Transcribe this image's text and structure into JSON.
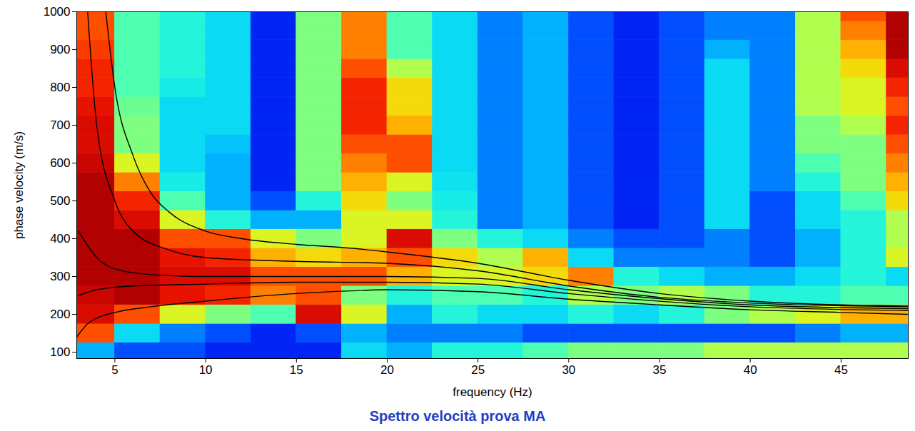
{
  "chart_data": {
    "type": "heatmap",
    "title": "Spettro velocità prova MA",
    "xlabel": "frequency (Hz)",
    "ylabel": "phase velocity (m/s)",
    "xlim": [
      2.9,
      48.7
    ],
    "ylim": [
      83,
      1000
    ],
    "xticks": [
      5,
      10,
      15,
      20,
      25,
      30,
      35,
      40,
      45
    ],
    "yticks": [
      100,
      200,
      300,
      400,
      500,
      600,
      700,
      800,
      900,
      1000
    ],
    "zlim": [
      0,
      1
    ],
    "heatmap": {
      "x_bins": [
        2.5,
        5,
        7.5,
        10,
        12.5,
        15,
        17.5,
        20,
        22.5,
        25,
        27.5,
        30,
        32.5,
        35,
        37.5,
        40,
        42.5,
        45,
        47.5,
        50
      ],
      "y_bins": [
        75,
        125,
        175,
        225,
        275,
        325,
        375,
        425,
        475,
        525,
        575,
        625,
        675,
        725,
        775,
        825,
        875,
        925,
        975,
        1025
      ],
      "z": [
        [
          0.3,
          0.8,
          0.9,
          0.92,
          0.95,
          0.95,
          0.95,
          0.95,
          0.95,
          0.95,
          0.92,
          0.9,
          0.9,
          0.88,
          0.85,
          0.85,
          0.82,
          0.8,
          0.8
        ],
        [
          0.2,
          0.35,
          0.8,
          0.95,
          0.95,
          0.95,
          0.95,
          0.9,
          0.85,
          0.75,
          0.6,
          0.5,
          0.5,
          0.48,
          0.45,
          0.45,
          0.45,
          0.45,
          0.45
        ],
        [
          0.2,
          0.25,
          0.6,
          0.88,
          0.9,
          0.88,
          0.8,
          0.6,
          0.45,
          0.38,
          0.35,
          0.35,
          0.35,
          0.35,
          0.38,
          0.4,
          0.4,
          0.4,
          0.4
        ],
        [
          0.15,
          0.2,
          0.5,
          0.85,
          0.9,
          0.85,
          0.8,
          0.4,
          0.3,
          0.3,
          0.3,
          0.32,
          0.35,
          0.35,
          0.35,
          0.35,
          0.35,
          0.35,
          0.35
        ],
        [
          0.15,
          0.15,
          0.45,
          0.75,
          0.8,
          0.7,
          0.6,
          0.3,
          0.2,
          0.15,
          0.15,
          0.15,
          0.15,
          0.15,
          0.15,
          0.15,
          0.15,
          0.15,
          0.15
        ],
        [
          0.15,
          0.2,
          0.9,
          0.8,
          0.8,
          0.65,
          0.5,
          0.3,
          0.4,
          0.5,
          0.5,
          0.5,
          0.5,
          0.5,
          0.5,
          0.5,
          0.5,
          0.5,
          0.5
        ],
        [
          0.35,
          0.3,
          0.6,
          0.5,
          0.8,
          0.7,
          0.6,
          0.6,
          0.65,
          0.7,
          0.75,
          0.8,
          0.85,
          0.85,
          0.85,
          0.8,
          0.75,
          0.75,
          0.75
        ],
        [
          0.3,
          0.25,
          0.3,
          0.4,
          0.7,
          0.8,
          0.9,
          0.6,
          0.5,
          0.6,
          0.8,
          0.8,
          0.7,
          0.65,
          0.65,
          0.55,
          0.45,
          0.45,
          0.45
        ],
        [
          0.4,
          0.25,
          0.4,
          0.45,
          0.6,
          0.65,
          0.5,
          0.4,
          0.38,
          0.36,
          0.35,
          0.35,
          0.35,
          0.35,
          0.35,
          0.35,
          0.35,
          0.35,
          0.35
        ],
        [
          0.4,
          0.25,
          0.35,
          0.45,
          0.6,
          0.55,
          0.4,
          0.25,
          0.25,
          0.25,
          0.25,
          0.25,
          0.25,
          0.25,
          0.25,
          0.25,
          0.25,
          0.25,
          0.25
        ],
        [
          0.45,
          0.2,
          0.35,
          0.4,
          0.65,
          0.7,
          0.35,
          0.3,
          0.3,
          0.3,
          0.3,
          0.3,
          0.3,
          0.3,
          0.3,
          0.3,
          0.3,
          0.3,
          0.3
        ],
        [
          0.5,
          0.2,
          0.4,
          0.55,
          0.75,
          0.35,
          0.25,
          0.2,
          0.2,
          0.2,
          0.2,
          0.2,
          0.2,
          0.2,
          0.2,
          0.2,
          0.2,
          0.2,
          0.2
        ],
        [
          0.5,
          0.2,
          0.35,
          0.5,
          0.4,
          0.25,
          0.2,
          0.15,
          0.15,
          0.15,
          0.15,
          0.15,
          0.15,
          0.15,
          0.15,
          0.15,
          0.15,
          0.15,
          0.15
        ],
        [
          0.5,
          0.2,
          0.4,
          0.55,
          0.35,
          0.25,
          0.2,
          0.2,
          0.2,
          0.2,
          0.2,
          0.2,
          0.2,
          0.2,
          0.2,
          0.2,
          0.2,
          0.2,
          0.2
        ],
        [
          0.55,
          0.2,
          0.5,
          0.5,
          0.3,
          0.25,
          0.25,
          0.35,
          0.35,
          0.35,
          0.35,
          0.35,
          0.35,
          0.35,
          0.35,
          0.35,
          0.3,
          0.25,
          0.25
        ],
        [
          0.55,
          0.2,
          0.55,
          0.4,
          0.3,
          0.2,
          0.2,
          0.2,
          0.2,
          0.25,
          0.25,
          0.25,
          0.25,
          0.25,
          0.25,
          0.25,
          0.25,
          0.25,
          0.25
        ],
        [
          0.55,
          0.25,
          0.6,
          0.4,
          0.35,
          0.3,
          0.3,
          0.35,
          0.35,
          0.4,
          0.45,
          0.5,
          0.5,
          0.55,
          0.55,
          0.55,
          0.55,
          0.55,
          0.55
        ],
        [
          0.55,
          0.3,
          0.7,
          0.45,
          0.4,
          0.4,
          0.4,
          0.4,
          0.45,
          0.5,
          0.5,
          0.5,
          0.55,
          0.6,
          0.6,
          0.65,
          0.7,
          0.75,
          0.8
        ],
        [
          0.55,
          0.3,
          0.7,
          0.45,
          0.35,
          0.6,
          0.55,
          0.55,
          0.65,
          0.7,
          0.75,
          0.8,
          0.85,
          0.8,
          0.85,
          0.9,
          0.95,
          0.95,
          0.95
        ]
      ]
    },
    "series": [
      {
        "color": "#000000",
        "type": "line",
        "x": [
          4.5,
          5,
          6,
          7,
          8,
          10,
          12,
          15,
          18,
          20,
          25,
          30,
          35,
          40,
          45,
          48.7
        ],
        "values": [
          1000,
          800,
          620,
          520,
          470,
          420,
          400,
          385,
          375,
          365,
          335,
          290,
          255,
          235,
          225,
          222
        ]
      },
      {
        "color": "#000000",
        "type": "line",
        "x": [
          3.5,
          4,
          5,
          6,
          8,
          10,
          15,
          20,
          25,
          30,
          35,
          40,
          48.7
        ],
        "values": [
          1000,
          700,
          500,
          420,
          370,
          350,
          340,
          335,
          315,
          275,
          245,
          230,
          220
        ]
      },
      {
        "color": "#000000",
        "type": "line",
        "x": [
          3,
          4,
          5,
          7,
          10,
          15,
          20,
          25,
          30,
          40,
          48.7
        ],
        "values": [
          420,
          350,
          320,
          305,
          300,
          300,
          300,
          295,
          265,
          225,
          215
        ]
      },
      {
        "color": "#000000",
        "type": "line",
        "x": [
          3,
          4,
          6,
          10,
          15,
          20,
          25,
          30,
          40,
          48.7
        ],
        "values": [
          250,
          265,
          275,
          280,
          285,
          285,
          280,
          255,
          220,
          210
        ]
      },
      {
        "color": "#000000",
        "type": "line",
        "x": [
          2.9,
          3.5,
          4,
          5,
          7,
          10,
          15,
          18,
          20,
          25,
          30,
          35,
          40,
          45,
          48.7
        ],
        "values": [
          140,
          175,
          190,
          205,
          220,
          235,
          255,
          262,
          265,
          260,
          240,
          225,
          212,
          205,
          200
        ]
      }
    ]
  }
}
